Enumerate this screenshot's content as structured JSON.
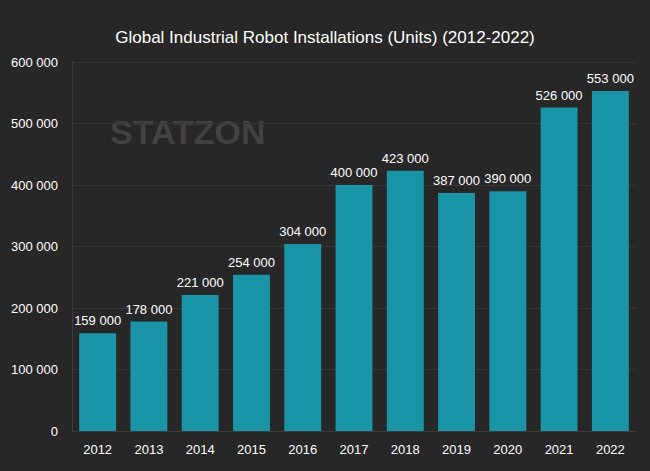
{
  "chart_data": {
    "type": "bar",
    "title": "Global Industrial Robot Installations (Units) (2012-2022)",
    "categories": [
      "2012",
      "2013",
      "2014",
      "2015",
      "2016",
      "2017",
      "2018",
      "2019",
      "2020",
      "2021",
      "2022"
    ],
    "values": [
      159000,
      178000,
      221000,
      254000,
      304000,
      400000,
      423000,
      387000,
      390000,
      526000,
      553000
    ],
    "value_labels": [
      "159 000",
      "178 000",
      "221 000",
      "254 000",
      "304 000",
      "400 000",
      "423 000",
      "387 000",
      "390 000",
      "526 000",
      "553 000"
    ],
    "color": "#1a95a7",
    "ylim": [
      0,
      600000
    ],
    "yticks": [
      0,
      {
        "value": 100000,
        "label": "100 000"
      },
      {
        "value": 200000,
        "label": "200 000"
      },
      {
        "value": 300000,
        "label": "300 000"
      },
      {
        "value": 400000,
        "label": "400 000"
      },
      {
        "value": 500000,
        "label": "500 000"
      },
      {
        "value": 600000,
        "label": "600 000"
      }
    ],
    "grid": true,
    "data_labels": true,
    "annotations": [
      {
        "text": "STATZON"
      }
    ]
  }
}
